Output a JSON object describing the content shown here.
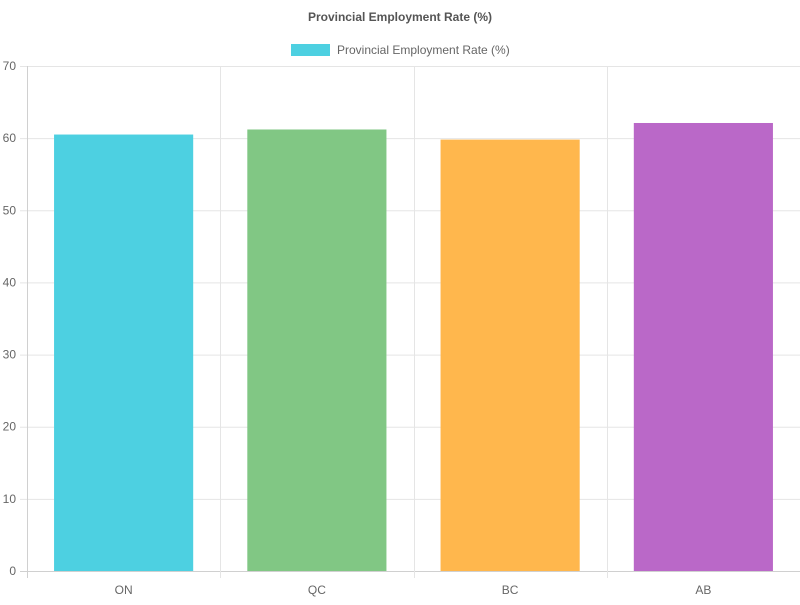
{
  "chart_data": {
    "type": "bar",
    "title": "Provincial Employment Rate (%)",
    "legend": {
      "position": "top",
      "entries": [
        "Provincial Employment Rate (%)"
      ]
    },
    "categories": [
      "ON",
      "QC",
      "BC",
      "AB"
    ],
    "series": [
      {
        "name": "Provincial Employment Rate (%)",
        "values": [
          60.5,
          61.2,
          59.8,
          62.1
        ],
        "colors": [
          "#4dd0e1",
          "#81c784",
          "#ffb74d",
          "#ba68c8"
        ]
      }
    ],
    "ylim": [
      0,
      70
    ],
    "yticks": [
      0,
      10,
      20,
      30,
      40,
      50,
      60,
      70
    ],
    "grid": true
  }
}
